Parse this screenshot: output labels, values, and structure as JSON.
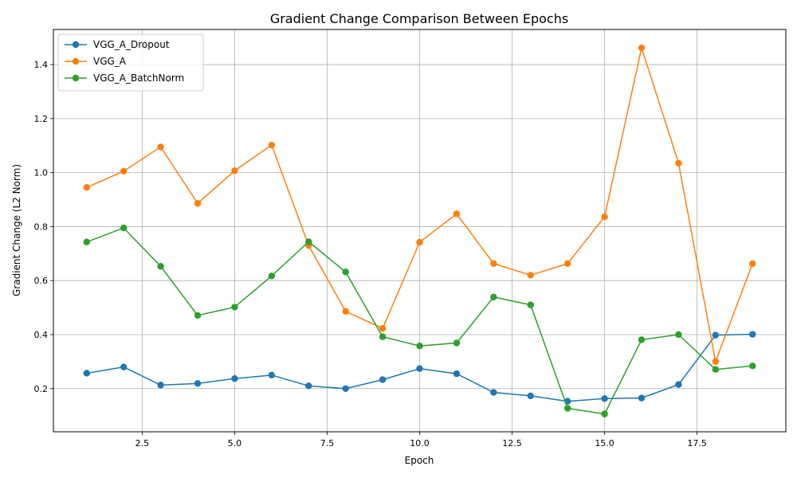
{
  "chart_data": {
    "type": "line",
    "title": "Gradient Change Comparison Between Epochs",
    "xlabel": "Epoch",
    "ylabel": "Gradient Change (L2 Norm)",
    "xlim": [
      0.1,
      19.9
    ],
    "ylim": [
      0.04,
      1.53
    ],
    "xticks": [
      2.5,
      5.0,
      7.5,
      10.0,
      12.5,
      15.0,
      17.5
    ],
    "yticks": [
      0.2,
      0.4,
      0.6,
      0.8,
      1.0,
      1.2,
      1.4
    ],
    "grid": true,
    "legend_position": "top-left",
    "x": [
      1,
      2,
      3,
      4,
      5,
      6,
      7,
      8,
      9,
      10,
      11,
      12,
      13,
      14,
      15,
      16,
      17,
      18,
      19
    ],
    "series": [
      {
        "name": "VGG_A_Dropout",
        "color": "#1f77b4",
        "values": [
          0.257,
          0.28,
          0.213,
          0.219,
          0.237,
          0.25,
          0.21,
          0.2,
          0.233,
          0.274,
          0.255,
          0.186,
          0.173,
          0.153,
          0.163,
          0.165,
          0.215,
          0.398,
          0.401
        ]
      },
      {
        "name": "VGG_A",
        "color": "#ff7f0e",
        "values": [
          0.945,
          1.005,
          1.095,
          0.886,
          1.007,
          1.102,
          0.73,
          0.486,
          0.423,
          0.742,
          0.847,
          0.663,
          0.62,
          0.663,
          0.836,
          1.462,
          1.035,
          0.3,
          0.663
        ]
      },
      {
        "name": "VGG_A_BatchNorm",
        "color": "#2ca02c",
        "values": [
          0.743,
          0.795,
          0.653,
          0.471,
          0.502,
          0.617,
          0.744,
          0.632,
          0.392,
          0.358,
          0.369,
          0.539,
          0.51,
          0.127,
          0.106,
          0.381,
          0.4,
          0.271,
          0.284
        ]
      }
    ]
  }
}
